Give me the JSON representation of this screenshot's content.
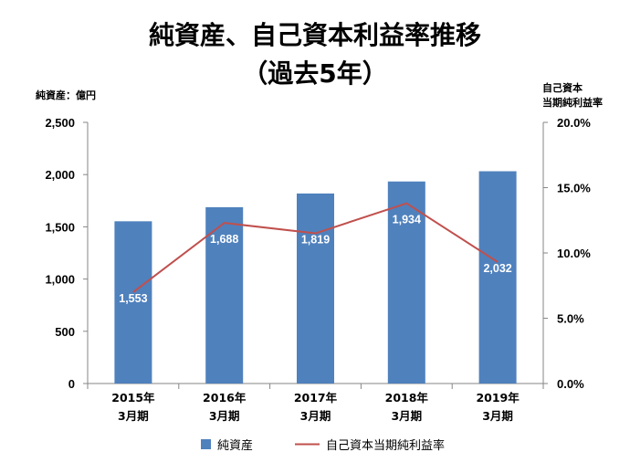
{
  "chart_data": {
    "type": "bar",
    "title_line1": "純資産、自己資本利益率推移",
    "title_line2": "（過去5年）",
    "ylabel_left": "純資産：億円",
    "ylabel_right_line1": "自己資本",
    "ylabel_right_line2": "当期純利益率",
    "categories": [
      [
        "2015年",
        "3月期"
      ],
      [
        "2016年",
        "3月期"
      ],
      [
        "2017年",
        "3月期"
      ],
      [
        "2018年",
        "3月期"
      ],
      [
        "2019年",
        "3月期"
      ]
    ],
    "ylim_left": [
      0,
      2500
    ],
    "yticks_left": [
      0,
      500,
      1000,
      1500,
      2000,
      2500
    ],
    "ytick_labels_left": [
      "0",
      "500",
      "1,000",
      "1,500",
      "2,000",
      "2,500"
    ],
    "ylim_right": [
      0,
      20
    ],
    "yticks_right": [
      0,
      5,
      10,
      15,
      20
    ],
    "ytick_labels_right": [
      "0.0%",
      "5.0%",
      "10.0%",
      "15.0%",
      "20.0%"
    ],
    "series": [
      {
        "name": "純資産",
        "type": "bar",
        "axis": "left",
        "color": "#4F81BD",
        "values": [
          1553,
          1688,
          1819,
          1934,
          2032
        ],
        "labels": [
          "1,553",
          "1,688",
          "1,819",
          "1,934",
          "2,032"
        ]
      },
      {
        "name": "自己資本当期純利益率",
        "type": "line",
        "axis": "right",
        "color": "#C0504D",
        "values": [
          7.0,
          12.3,
          11.5,
          13.8,
          9.3
        ]
      }
    ],
    "grid": false,
    "legend_position": "bottom"
  }
}
